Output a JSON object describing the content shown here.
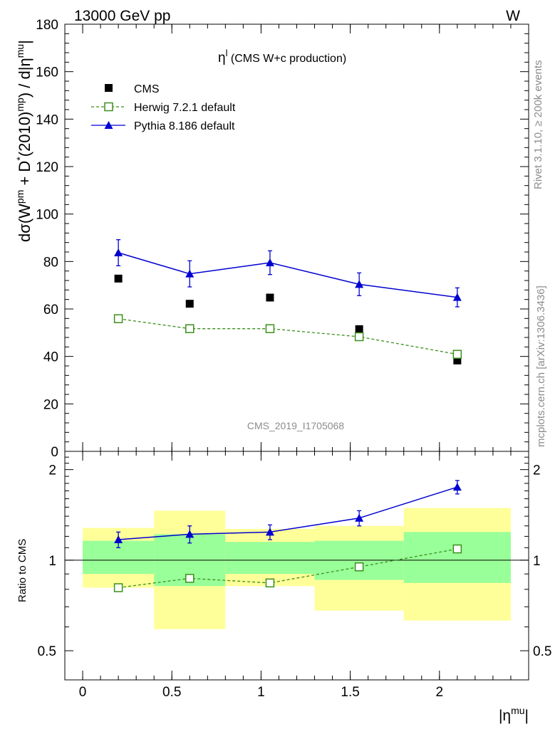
{
  "header": {
    "left": "13000 GeV pp",
    "right": "W"
  },
  "side_labels": {
    "rivet": "Rivet 3.1.10, ≥ 200k events",
    "mcplots": "mcplots.cern.ch [arXiv:1306.3436]"
  },
  "chart_data": {
    "type": "line",
    "title": "η^l (CMS W+c production)",
    "title_main": "η",
    "title_sup": "l",
    "title_rest": " (CMS W+c production)",
    "watermark": "CMS_2019_I1705068",
    "xlabel": "|η^mu|",
    "xlabel_main": "|η",
    "xlabel_sup": "mu",
    "xlabel_end": "|",
    "ylabel": "dσ(W^pm + D^*(2010)^mp) / d|η^mu|",
    "xlim": [
      -0.1,
      2.5
    ],
    "ylim": [
      0,
      180
    ],
    "x_ticks": [
      0,
      0.5,
      1,
      1.5,
      2
    ],
    "x_tick_labels": [
      "0",
      "0.5",
      "1",
      "1.5",
      "2"
    ],
    "y_ticks": [
      0,
      20,
      40,
      60,
      80,
      100,
      120,
      140,
      160,
      180
    ],
    "y_tick_labels": [
      "0",
      "20",
      "40",
      "60",
      "80",
      "100",
      "120",
      "140",
      "160",
      "180"
    ],
    "bins": [
      [
        0,
        0.4
      ],
      [
        0.4,
        0.8
      ],
      [
        0.8,
        1.3
      ],
      [
        1.3,
        1.8
      ],
      [
        1.8,
        2.4
      ]
    ],
    "x": [
      0.2,
      0.6,
      1.05,
      1.55,
      2.1
    ],
    "series": [
      {
        "name": "CMS",
        "values": [
          72.8,
          62.2,
          64.8,
          51.5,
          38.3
        ],
        "color": "#000000",
        "marker": "square-filled"
      },
      {
        "name": "Herwig 7.2.1 default",
        "values": [
          55.9,
          51.7,
          51.7,
          48.3,
          40.9
        ],
        "errors": [
          1.0,
          1.0,
          1.0,
          1.0,
          1.0
        ],
        "color": "#3b8f1c",
        "marker": "square-open",
        "line": "dashed"
      },
      {
        "name": "Pythia 8.186 default",
        "values": [
          83.7,
          74.8,
          79.5,
          70.4,
          64.9
        ],
        "errors": [
          5.5,
          5.5,
          5.0,
          4.8,
          4.0
        ],
        "color": "#0000d0",
        "marker": "triangle",
        "line": "solid"
      }
    ],
    "ratio": {
      "ylabel": "Ratio to CMS",
      "ylim": [
        0.4,
        2.3
      ],
      "y_ticks": [
        0.5,
        1,
        2
      ],
      "y_tick_labels": [
        "0.5",
        "1",
        "2"
      ],
      "band_inner": [
        [
          0.9,
          1.16
        ],
        [
          0.82,
          1.22
        ],
        [
          0.9,
          1.15
        ],
        [
          0.86,
          1.16
        ],
        [
          0.84,
          1.24
        ]
      ],
      "band_outer": [
        [
          0.81,
          1.28
        ],
        [
          0.59,
          1.46
        ],
        [
          0.82,
          1.27
        ],
        [
          0.68,
          1.3
        ],
        [
          0.63,
          1.49
        ]
      ],
      "herwig": [
        0.81,
        0.87,
        0.84,
        0.95,
        1.09
      ],
      "herwig_err": [
        0.01,
        0.01,
        0.01,
        0.01,
        0.01
      ],
      "pythia": [
        1.17,
        1.22,
        1.24,
        1.38,
        1.75
      ],
      "pythia_err": [
        0.07,
        0.08,
        0.07,
        0.08,
        0.09
      ],
      "band_colors": {
        "inner": "#99ff99",
        "outer": "#ffff99"
      }
    }
  }
}
